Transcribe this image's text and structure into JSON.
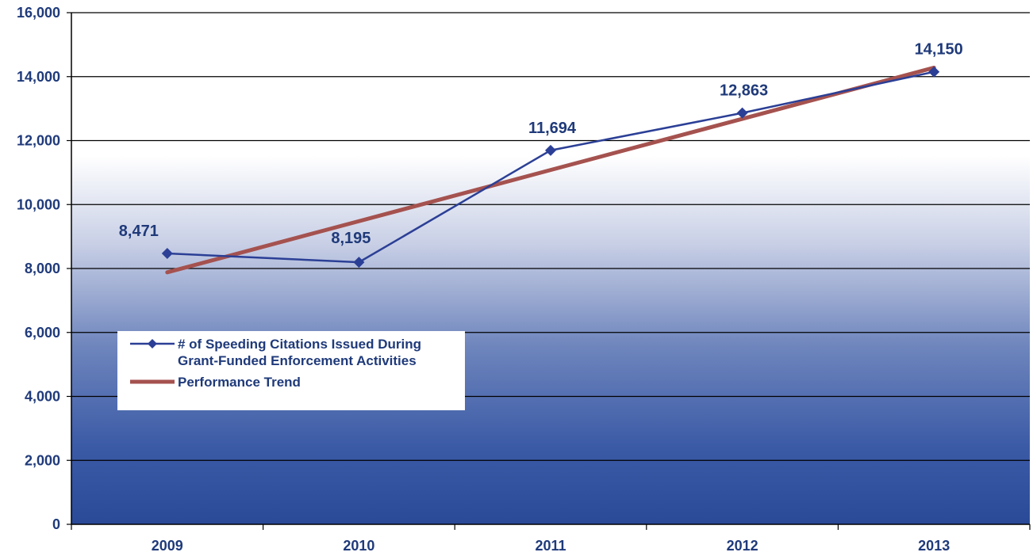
{
  "chart_data": {
    "type": "line",
    "title": "",
    "xlabel": "",
    "ylabel": "",
    "categories": [
      "2009",
      "2010",
      "2011",
      "2012",
      "2013"
    ],
    "ylim": [
      0,
      16000
    ],
    "yticks": [
      0,
      2000,
      4000,
      6000,
      8000,
      10000,
      12000,
      14000,
      16000
    ],
    "ytick_labels": [
      "0",
      "2,000",
      "4,000",
      "6,000",
      "8,000",
      "10,000",
      "12,000",
      "14,000",
      "16,000"
    ],
    "grid": true,
    "legend_position": "left-middle",
    "series": [
      {
        "name": "# of Speeding Citations Issued During\nGrant-Funded Enforcement Activities",
        "values": [
          8471,
          8195,
          11694,
          12863,
          14150
        ],
        "data_labels": [
          "8,471",
          "8,195",
          "11,694",
          "12,863",
          "14,150"
        ],
        "color": "#2b3f96",
        "marker": "diamond"
      },
      {
        "name": "Performance Trend",
        "values": [
          7880,
          9480,
          11080,
          12680,
          14280
        ],
        "color": "#a5524f",
        "marker": "none"
      }
    ]
  }
}
